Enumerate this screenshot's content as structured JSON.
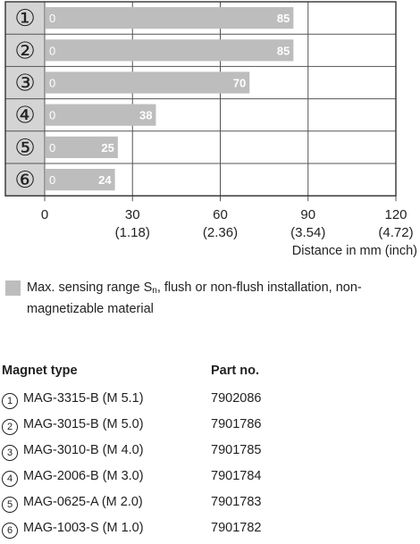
{
  "chart_data": {
    "type": "bar",
    "orientation": "horizontal",
    "categories": [
      "①",
      "②",
      "③",
      "④",
      "⑤",
      "⑥"
    ],
    "values": [
      85,
      85,
      70,
      38,
      25,
      24
    ],
    "bar_start_label": "0",
    "xticks": [
      0,
      30,
      60,
      90,
      120
    ],
    "xtick_sub": [
      "",
      "(1.18)",
      "(2.36)",
      "(3.54)",
      "(4.72)"
    ],
    "xlim": [
      0,
      120
    ],
    "xlabel": "Distance in mm (inch)",
    "grid": true,
    "legend": {
      "color": "#bdbdbd",
      "text_before": "Max. sensing range S",
      "text_sub": "n",
      "text_after": ", flush or non-flush installation, non-magnetizable material"
    }
  },
  "parts_table": {
    "headers": [
      "Magnet type",
      "Part no."
    ],
    "rows": [
      {
        "num": "1",
        "type": "MAG-3315-B (M 5.1)",
        "part": "7902086"
      },
      {
        "num": "2",
        "type": "MAG-3015-B (M 5.0)",
        "part": "7901786"
      },
      {
        "num": "3",
        "type": "MAG-3010-B (M 4.0)",
        "part": "7901785"
      },
      {
        "num": "4",
        "type": "MAG-2006-B (M 3.0)",
        "part": "7901784"
      },
      {
        "num": "5",
        "type": "MAG-0625-A (M 2.0)",
        "part": "7901783"
      },
      {
        "num": "6",
        "type": "MAG-1003-S (M 1.0)",
        "part": "7901782"
      }
    ]
  }
}
